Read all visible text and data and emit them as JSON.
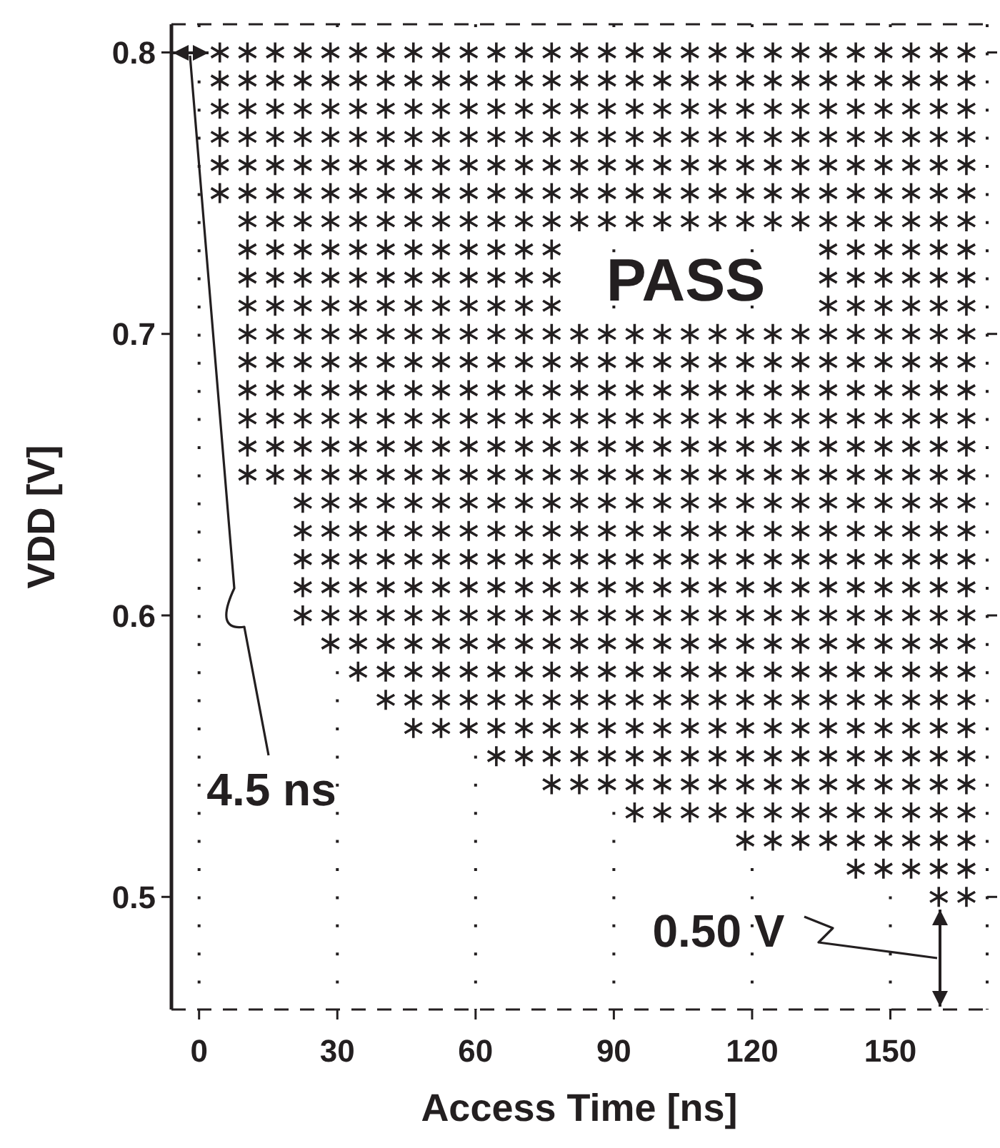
{
  "chart_data": {
    "type": "scatter",
    "xlabel": "Access Time [ns]",
    "ylabel": "VDD [V]",
    "marker": "cross",
    "grid": "x",
    "xlim": [
      -6,
      171
    ],
    "xticks": [
      0,
      30,
      60,
      90,
      120,
      150
    ],
    "ylim": [
      0.46,
      0.81
    ],
    "yticks": [
      0.5,
      0.6,
      0.7,
      0.8
    ],
    "annotations": [
      "PASS",
      "4.5 ns",
      "0.50 V"
    ],
    "series": [
      {
        "color": "#231f20",
        "x": [
          4.5,
          10.5,
          16.5,
          22.5,
          28.5,
          34.5,
          40.5,
          46.5,
          52.5,
          58.5,
          64.5,
          70.5,
          76.5,
          82.5,
          88.5,
          94.5,
          100.5,
          106.5,
          112.5,
          118.5,
          124.5,
          130.5,
          136.5,
          142.5,
          148.5,
          154.5,
          160.5,
          166.5
        ],
        "values": [
          0.8,
          0.8,
          0.8,
          0.8,
          0.8,
          0.8,
          0.8,
          0.8,
          0.8,
          0.8,
          0.8,
          0.8,
          0.8,
          0.8,
          0.8,
          0.8,
          0.8,
          0.8,
          0.8,
          0.8,
          0.8,
          0.8,
          0.8,
          0.8,
          0.8,
          0.8,
          0.8,
          0.8
        ]
      },
      {
        "color": "#231f20",
        "x": [
          4.5,
          10.5,
          16.5,
          22.5,
          28.5,
          34.5,
          40.5,
          46.5,
          52.5,
          58.5,
          64.5,
          70.5,
          76.5,
          82.5,
          88.5,
          94.5,
          100.5,
          106.5,
          112.5,
          118.5,
          124.5,
          130.5,
          136.5,
          142.5,
          148.5,
          154.5,
          160.5,
          166.5
        ],
        "values": [
          0.79,
          0.79,
          0.79,
          0.79,
          0.79,
          0.79,
          0.79,
          0.79,
          0.79,
          0.79,
          0.79,
          0.79,
          0.79,
          0.79,
          0.79,
          0.79,
          0.79,
          0.79,
          0.79,
          0.79,
          0.79,
          0.79,
          0.79,
          0.79,
          0.79,
          0.79,
          0.79,
          0.79
        ]
      },
      {
        "color": "#231f20",
        "x": [
          4.5,
          10.5,
          16.5,
          22.5,
          28.5,
          34.5,
          40.5,
          46.5,
          52.5,
          58.5,
          64.5,
          70.5,
          76.5,
          82.5,
          88.5,
          94.5,
          100.5,
          106.5,
          112.5,
          118.5,
          124.5,
          130.5,
          136.5,
          142.5,
          148.5,
          154.5,
          160.5,
          166.5
        ],
        "values": [
          0.78,
          0.78,
          0.78,
          0.78,
          0.78,
          0.78,
          0.78,
          0.78,
          0.78,
          0.78,
          0.78,
          0.78,
          0.78,
          0.78,
          0.78,
          0.78,
          0.78,
          0.78,
          0.78,
          0.78,
          0.78,
          0.78,
          0.78,
          0.78,
          0.78,
          0.78,
          0.78,
          0.78
        ]
      },
      {
        "color": "#231f20",
        "x": [
          4.5,
          10.5,
          16.5,
          22.5,
          28.5,
          34.5,
          40.5,
          46.5,
          52.5,
          58.5,
          64.5,
          70.5,
          76.5,
          82.5,
          88.5,
          94.5,
          100.5,
          106.5,
          112.5,
          118.5,
          124.5,
          130.5,
          136.5,
          142.5,
          148.5,
          154.5,
          160.5,
          166.5
        ],
        "values": [
          0.77,
          0.77,
          0.77,
          0.77,
          0.77,
          0.77,
          0.77,
          0.77,
          0.77,
          0.77,
          0.77,
          0.77,
          0.77,
          0.77,
          0.77,
          0.77,
          0.77,
          0.77,
          0.77,
          0.77,
          0.77,
          0.77,
          0.77,
          0.77,
          0.77,
          0.77,
          0.77,
          0.77
        ]
      },
      {
        "color": "#231f20",
        "x": [
          4.5,
          10.5,
          16.5,
          22.5,
          28.5,
          34.5,
          40.5,
          46.5,
          52.5,
          58.5,
          64.5,
          70.5,
          76.5,
          82.5,
          88.5,
          94.5,
          100.5,
          106.5,
          112.5,
          118.5,
          124.5,
          130.5,
          136.5,
          142.5,
          148.5,
          154.5,
          160.5,
          166.5
        ],
        "values": [
          0.76,
          0.76,
          0.76,
          0.76,
          0.76,
          0.76,
          0.76,
          0.76,
          0.76,
          0.76,
          0.76,
          0.76,
          0.76,
          0.76,
          0.76,
          0.76,
          0.76,
          0.76,
          0.76,
          0.76,
          0.76,
          0.76,
          0.76,
          0.76,
          0.76,
          0.76,
          0.76,
          0.76
        ]
      },
      {
        "color": "#231f20",
        "x": [
          4.5,
          10.5,
          16.5,
          22.5,
          28.5,
          34.5,
          40.5,
          46.5,
          52.5,
          58.5,
          64.5,
          70.5,
          76.5,
          82.5,
          88.5,
          94.5,
          100.5,
          106.5,
          112.5,
          118.5,
          124.5,
          130.5,
          136.5,
          142.5,
          148.5,
          154.5,
          160.5,
          166.5
        ],
        "values": [
          0.75,
          0.75,
          0.75,
          0.75,
          0.75,
          0.75,
          0.75,
          0.75,
          0.75,
          0.75,
          0.75,
          0.75,
          0.75,
          0.75,
          0.75,
          0.75,
          0.75,
          0.75,
          0.75,
          0.75,
          0.75,
          0.75,
          0.75,
          0.75,
          0.75,
          0.75,
          0.75,
          0.75
        ]
      },
      {
        "color": "#231f20",
        "x": [
          10.5,
          16.5,
          22.5,
          28.5,
          34.5,
          40.5,
          46.5,
          52.5,
          58.5,
          64.5,
          70.5,
          76.5,
          82.5,
          88.5,
          94.5,
          100.5,
          106.5,
          112.5,
          118.5,
          124.5,
          130.5,
          136.5,
          142.5,
          148.5,
          154.5,
          160.5,
          166.5
        ],
        "values": [
          0.74,
          0.74,
          0.74,
          0.74,
          0.74,
          0.74,
          0.74,
          0.74,
          0.74,
          0.74,
          0.74,
          0.74,
          0.74,
          0.74,
          0.74,
          0.74,
          0.74,
          0.74,
          0.74,
          0.74,
          0.74,
          0.74,
          0.74,
          0.74,
          0.74,
          0.74,
          0.74
        ]
      },
      {
        "color": "#231f20",
        "x": [
          10.5,
          16.5,
          22.5,
          28.5,
          34.5,
          40.5,
          46.5,
          52.5,
          58.5,
          64.5,
          70.5,
          76.5,
          136.5,
          142.5,
          148.5,
          154.5,
          160.5,
          166.5
        ],
        "values": [
          0.73,
          0.73,
          0.73,
          0.73,
          0.73,
          0.73,
          0.73,
          0.73,
          0.73,
          0.73,
          0.73,
          0.73,
          0.73,
          0.73,
          0.73,
          0.73,
          0.73,
          0.73
        ]
      },
      {
        "color": "#231f20",
        "x": [
          10.5,
          16.5,
          22.5,
          28.5,
          34.5,
          40.5,
          46.5,
          52.5,
          58.5,
          64.5,
          70.5,
          76.5,
          136.5,
          142.5,
          148.5,
          154.5,
          160.5,
          166.5
        ],
        "values": [
          0.72,
          0.72,
          0.72,
          0.72,
          0.72,
          0.72,
          0.72,
          0.72,
          0.72,
          0.72,
          0.72,
          0.72,
          0.72,
          0.72,
          0.72,
          0.72,
          0.72,
          0.72
        ]
      },
      {
        "color": "#231f20",
        "x": [
          10.5,
          16.5,
          22.5,
          28.5,
          34.5,
          40.5,
          46.5,
          52.5,
          58.5,
          64.5,
          70.5,
          76.5,
          136.5,
          142.5,
          148.5,
          154.5,
          160.5,
          166.5
        ],
        "values": [
          0.71,
          0.71,
          0.71,
          0.71,
          0.71,
          0.71,
          0.71,
          0.71,
          0.71,
          0.71,
          0.71,
          0.71,
          0.71,
          0.71,
          0.71,
          0.71,
          0.71,
          0.71
        ]
      },
      {
        "color": "#231f20",
        "x": [
          10.5,
          16.5,
          22.5,
          28.5,
          34.5,
          40.5,
          46.5,
          52.5,
          58.5,
          64.5,
          70.5,
          76.5,
          82.5,
          88.5,
          94.5,
          100.5,
          106.5,
          112.5,
          118.5,
          124.5,
          130.5,
          136.5,
          142.5,
          148.5,
          154.5,
          160.5,
          166.5
        ],
        "values": [
          0.7,
          0.7,
          0.7,
          0.7,
          0.7,
          0.7,
          0.7,
          0.7,
          0.7,
          0.7,
          0.7,
          0.7,
          0.7,
          0.7,
          0.7,
          0.7,
          0.7,
          0.7,
          0.7,
          0.7,
          0.7,
          0.7,
          0.7,
          0.7,
          0.7,
          0.7,
          0.7
        ]
      },
      {
        "color": "#231f20",
        "x": [
          10.5,
          16.5,
          22.5,
          28.5,
          34.5,
          40.5,
          46.5,
          52.5,
          58.5,
          64.5,
          70.5,
          76.5,
          82.5,
          88.5,
          94.5,
          100.5,
          106.5,
          112.5,
          118.5,
          124.5,
          130.5,
          136.5,
          142.5,
          148.5,
          154.5,
          160.5,
          166.5
        ],
        "values": [
          0.69,
          0.69,
          0.69,
          0.69,
          0.69,
          0.69,
          0.69,
          0.69,
          0.69,
          0.69,
          0.69,
          0.69,
          0.69,
          0.69,
          0.69,
          0.69,
          0.69,
          0.69,
          0.69,
          0.69,
          0.69,
          0.69,
          0.69,
          0.69,
          0.69,
          0.69,
          0.69
        ]
      },
      {
        "color": "#231f20",
        "x": [
          10.5,
          16.5,
          22.5,
          28.5,
          34.5,
          40.5,
          46.5,
          52.5,
          58.5,
          64.5,
          70.5,
          76.5,
          82.5,
          88.5,
          94.5,
          100.5,
          106.5,
          112.5,
          118.5,
          124.5,
          130.5,
          136.5,
          142.5,
          148.5,
          154.5,
          160.5,
          166.5
        ],
        "values": [
          0.68,
          0.68,
          0.68,
          0.68,
          0.68,
          0.68,
          0.68,
          0.68,
          0.68,
          0.68,
          0.68,
          0.68,
          0.68,
          0.68,
          0.68,
          0.68,
          0.68,
          0.68,
          0.68,
          0.68,
          0.68,
          0.68,
          0.68,
          0.68,
          0.68,
          0.68,
          0.68
        ]
      },
      {
        "color": "#231f20",
        "x": [
          10.5,
          16.5,
          22.5,
          28.5,
          34.5,
          40.5,
          46.5,
          52.5,
          58.5,
          64.5,
          70.5,
          76.5,
          82.5,
          88.5,
          94.5,
          100.5,
          106.5,
          112.5,
          118.5,
          124.5,
          130.5,
          136.5,
          142.5,
          148.5,
          154.5,
          160.5,
          166.5
        ],
        "values": [
          0.67,
          0.67,
          0.67,
          0.67,
          0.67,
          0.67,
          0.67,
          0.67,
          0.67,
          0.67,
          0.67,
          0.67,
          0.67,
          0.67,
          0.67,
          0.67,
          0.67,
          0.67,
          0.67,
          0.67,
          0.67,
          0.67,
          0.67,
          0.67,
          0.67,
          0.67,
          0.67
        ]
      },
      {
        "color": "#231f20",
        "x": [
          10.5,
          16.5,
          22.5,
          28.5,
          34.5,
          40.5,
          46.5,
          52.5,
          58.5,
          64.5,
          70.5,
          76.5,
          82.5,
          88.5,
          94.5,
          100.5,
          106.5,
          112.5,
          118.5,
          124.5,
          130.5,
          136.5,
          142.5,
          148.5,
          154.5,
          160.5,
          166.5
        ],
        "values": [
          0.66,
          0.66,
          0.66,
          0.66,
          0.66,
          0.66,
          0.66,
          0.66,
          0.66,
          0.66,
          0.66,
          0.66,
          0.66,
          0.66,
          0.66,
          0.66,
          0.66,
          0.66,
          0.66,
          0.66,
          0.66,
          0.66,
          0.66,
          0.66,
          0.66,
          0.66,
          0.66
        ]
      },
      {
        "color": "#231f20",
        "x": [
          10.5,
          16.5,
          22.5,
          28.5,
          34.5,
          40.5,
          46.5,
          52.5,
          58.5,
          64.5,
          70.5,
          76.5,
          82.5,
          88.5,
          94.5,
          100.5,
          106.5,
          112.5,
          118.5,
          124.5,
          130.5,
          136.5,
          142.5,
          148.5,
          154.5,
          160.5,
          166.5
        ],
        "values": [
          0.65,
          0.65,
          0.65,
          0.65,
          0.65,
          0.65,
          0.65,
          0.65,
          0.65,
          0.65,
          0.65,
          0.65,
          0.65,
          0.65,
          0.65,
          0.65,
          0.65,
          0.65,
          0.65,
          0.65,
          0.65,
          0.65,
          0.65,
          0.65,
          0.65,
          0.65,
          0.65
        ]
      },
      {
        "color": "#231f20",
        "x": [
          22.5,
          28.5,
          34.5,
          40.5,
          46.5,
          52.5,
          58.5,
          64.5,
          70.5,
          76.5,
          82.5,
          88.5,
          94.5,
          100.5,
          106.5,
          112.5,
          118.5,
          124.5,
          130.5,
          136.5,
          142.5,
          148.5,
          154.5,
          160.5,
          166.5
        ],
        "values": [
          0.64,
          0.64,
          0.64,
          0.64,
          0.64,
          0.64,
          0.64,
          0.64,
          0.64,
          0.64,
          0.64,
          0.64,
          0.64,
          0.64,
          0.64,
          0.64,
          0.64,
          0.64,
          0.64,
          0.64,
          0.64,
          0.64,
          0.64,
          0.64,
          0.64
        ]
      },
      {
        "color": "#231f20",
        "x": [
          22.5,
          28.5,
          34.5,
          40.5,
          46.5,
          52.5,
          58.5,
          64.5,
          70.5,
          76.5,
          82.5,
          88.5,
          94.5,
          100.5,
          106.5,
          112.5,
          118.5,
          124.5,
          130.5,
          136.5,
          142.5,
          148.5,
          154.5,
          160.5,
          166.5
        ],
        "values": [
          0.63,
          0.63,
          0.63,
          0.63,
          0.63,
          0.63,
          0.63,
          0.63,
          0.63,
          0.63,
          0.63,
          0.63,
          0.63,
          0.63,
          0.63,
          0.63,
          0.63,
          0.63,
          0.63,
          0.63,
          0.63,
          0.63,
          0.63,
          0.63,
          0.63
        ]
      },
      {
        "color": "#231f20",
        "x": [
          22.5,
          28.5,
          34.5,
          40.5,
          46.5,
          52.5,
          58.5,
          64.5,
          70.5,
          76.5,
          82.5,
          88.5,
          94.5,
          100.5,
          106.5,
          112.5,
          118.5,
          124.5,
          130.5,
          136.5,
          142.5,
          148.5,
          154.5,
          160.5,
          166.5
        ],
        "values": [
          0.62,
          0.62,
          0.62,
          0.62,
          0.62,
          0.62,
          0.62,
          0.62,
          0.62,
          0.62,
          0.62,
          0.62,
          0.62,
          0.62,
          0.62,
          0.62,
          0.62,
          0.62,
          0.62,
          0.62,
          0.62,
          0.62,
          0.62,
          0.62,
          0.62
        ]
      },
      {
        "color": "#231f20",
        "x": [
          22.5,
          28.5,
          34.5,
          40.5,
          46.5,
          52.5,
          58.5,
          64.5,
          70.5,
          76.5,
          82.5,
          88.5,
          94.5,
          100.5,
          106.5,
          112.5,
          118.5,
          124.5,
          130.5,
          136.5,
          142.5,
          148.5,
          154.5,
          160.5,
          166.5
        ],
        "values": [
          0.61,
          0.61,
          0.61,
          0.61,
          0.61,
          0.61,
          0.61,
          0.61,
          0.61,
          0.61,
          0.61,
          0.61,
          0.61,
          0.61,
          0.61,
          0.61,
          0.61,
          0.61,
          0.61,
          0.61,
          0.61,
          0.61,
          0.61,
          0.61,
          0.61
        ]
      },
      {
        "color": "#231f20",
        "x": [
          22.5,
          28.5,
          34.5,
          40.5,
          46.5,
          52.5,
          58.5,
          64.5,
          70.5,
          76.5,
          82.5,
          88.5,
          94.5,
          100.5,
          106.5,
          112.5,
          118.5,
          124.5,
          130.5,
          136.5,
          142.5,
          148.5,
          154.5,
          160.5,
          166.5
        ],
        "values": [
          0.6,
          0.6,
          0.6,
          0.6,
          0.6,
          0.6,
          0.6,
          0.6,
          0.6,
          0.6,
          0.6,
          0.6,
          0.6,
          0.6,
          0.6,
          0.6,
          0.6,
          0.6,
          0.6,
          0.6,
          0.6,
          0.6,
          0.6,
          0.6,
          0.6
        ]
      },
      {
        "color": "#231f20",
        "x": [
          28.5,
          34.5,
          40.5,
          46.5,
          52.5,
          58.5,
          64.5,
          70.5,
          76.5,
          82.5,
          88.5,
          94.5,
          100.5,
          106.5,
          112.5,
          118.5,
          124.5,
          130.5,
          136.5,
          142.5,
          148.5,
          154.5,
          160.5,
          166.5
        ],
        "values": [
          0.59,
          0.59,
          0.59,
          0.59,
          0.59,
          0.59,
          0.59,
          0.59,
          0.59,
          0.59,
          0.59,
          0.59,
          0.59,
          0.59,
          0.59,
          0.59,
          0.59,
          0.59,
          0.59,
          0.59,
          0.59,
          0.59,
          0.59,
          0.59
        ]
      },
      {
        "color": "#231f20",
        "x": [
          34.5,
          40.5,
          46.5,
          52.5,
          58.5,
          64.5,
          70.5,
          76.5,
          82.5,
          88.5,
          94.5,
          100.5,
          106.5,
          112.5,
          118.5,
          124.5,
          130.5,
          136.5,
          142.5,
          148.5,
          154.5,
          160.5,
          166.5
        ],
        "values": [
          0.58,
          0.58,
          0.58,
          0.58,
          0.58,
          0.58,
          0.58,
          0.58,
          0.58,
          0.58,
          0.58,
          0.58,
          0.58,
          0.58,
          0.58,
          0.58,
          0.58,
          0.58,
          0.58,
          0.58,
          0.58,
          0.58,
          0.58
        ]
      },
      {
        "color": "#231f20",
        "x": [
          40.5,
          46.5,
          52.5,
          58.5,
          64.5,
          70.5,
          76.5,
          82.5,
          88.5,
          94.5,
          100.5,
          106.5,
          112.5,
          118.5,
          124.5,
          130.5,
          136.5,
          142.5,
          148.5,
          154.5,
          160.5,
          166.5
        ],
        "values": [
          0.57,
          0.57,
          0.57,
          0.57,
          0.57,
          0.57,
          0.57,
          0.57,
          0.57,
          0.57,
          0.57,
          0.57,
          0.57,
          0.57,
          0.57,
          0.57,
          0.57,
          0.57,
          0.57,
          0.57,
          0.57,
          0.57
        ]
      },
      {
        "color": "#231f20",
        "x": [
          46.5,
          52.5,
          58.5,
          64.5,
          70.5,
          76.5,
          82.5,
          88.5,
          94.5,
          100.5,
          106.5,
          112.5,
          118.5,
          124.5,
          130.5,
          136.5,
          142.5,
          148.5,
          154.5,
          160.5,
          166.5
        ],
        "values": [
          0.56,
          0.56,
          0.56,
          0.56,
          0.56,
          0.56,
          0.56,
          0.56,
          0.56,
          0.56,
          0.56,
          0.56,
          0.56,
          0.56,
          0.56,
          0.56,
          0.56,
          0.56,
          0.56,
          0.56,
          0.56
        ]
      },
      {
        "color": "#231f20",
        "x": [
          64.5,
          70.5,
          76.5,
          82.5,
          88.5,
          94.5,
          100.5,
          106.5,
          112.5,
          118.5,
          124.5,
          130.5,
          136.5,
          142.5,
          148.5,
          154.5,
          160.5,
          166.5
        ],
        "values": [
          0.55,
          0.55,
          0.55,
          0.55,
          0.55,
          0.55,
          0.55,
          0.55,
          0.55,
          0.55,
          0.55,
          0.55,
          0.55,
          0.55,
          0.55,
          0.55,
          0.55,
          0.55
        ]
      },
      {
        "color": "#231f20",
        "x": [
          76.5,
          82.5,
          88.5,
          94.5,
          100.5,
          106.5,
          112.5,
          118.5,
          124.5,
          130.5,
          136.5,
          142.5,
          148.5,
          154.5,
          160.5,
          166.5
        ],
        "values": [
          0.54,
          0.54,
          0.54,
          0.54,
          0.54,
          0.54,
          0.54,
          0.54,
          0.54,
          0.54,
          0.54,
          0.54,
          0.54,
          0.54,
          0.54,
          0.54
        ]
      },
      {
        "color": "#231f20",
        "x": [
          94.5,
          100.5,
          106.5,
          112.5,
          118.5,
          124.5,
          130.5,
          136.5,
          142.5,
          148.5,
          154.5,
          160.5,
          166.5
        ],
        "values": [
          0.53,
          0.53,
          0.53,
          0.53,
          0.53,
          0.53,
          0.53,
          0.53,
          0.53,
          0.53,
          0.53,
          0.53,
          0.53
        ]
      },
      {
        "color": "#231f20",
        "x": [
          118.5,
          124.5,
          130.5,
          136.5,
          142.5,
          148.5,
          154.5,
          160.5,
          166.5
        ],
        "values": [
          0.52,
          0.52,
          0.52,
          0.52,
          0.52,
          0.52,
          0.52,
          0.52,
          0.52
        ]
      },
      {
        "color": "#231f20",
        "x": [
          142.5,
          148.5,
          154.5,
          160.5,
          166.5
        ],
        "values": [
          0.51,
          0.51,
          0.51,
          0.51,
          0.51
        ]
      },
      {
        "color": "#231f20",
        "x": [
          160.5,
          166.5
        ],
        "values": [
          0.5,
          0.5
        ]
      }
    ]
  }
}
